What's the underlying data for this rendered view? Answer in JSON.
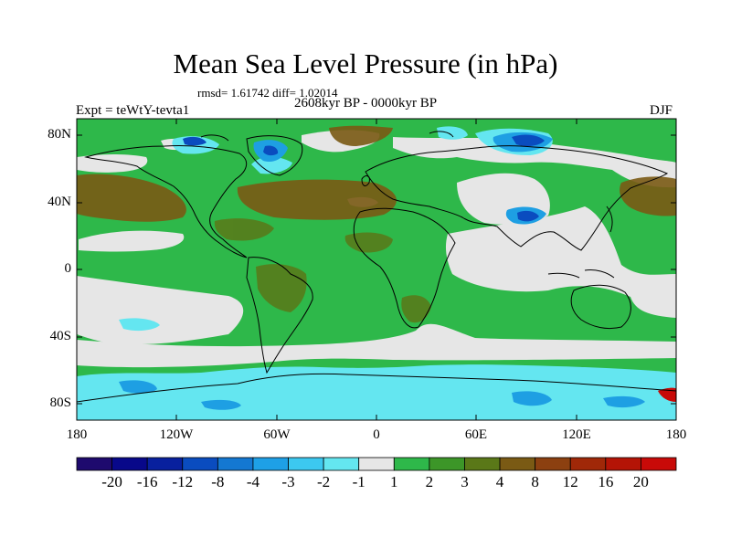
{
  "title": "Mean Sea Level Pressure (in hPa)",
  "stats_line": "rmsd= 1.61742 diff= 1.02014",
  "period": "2608kyr BP - 0000kyr BP",
  "experiment": "Expt = teWtY-tevta1",
  "season": "DJF",
  "axes": {
    "lat_labels": [
      "80N",
      "40N",
      "0",
      "40S",
      "80S"
    ],
    "lon_labels": [
      "180",
      "120W",
      "60W",
      "0",
      "60E",
      "120E",
      "180"
    ]
  },
  "colorbar": {
    "labels": [
      "-20",
      "-16",
      "-12",
      "-8",
      "-4",
      "-3",
      "-2",
      "-1",
      "1",
      "2",
      "3",
      "4",
      "8",
      "12",
      "16",
      "20"
    ],
    "colors": [
      "#1e0a6e",
      "#08088a",
      "#08209e",
      "#0a4cbf",
      "#1478d2",
      "#1ea0e6",
      "#3cc8f0",
      "#64e6f0",
      "#e6e6e6",
      "#2eb84a",
      "#3c9628",
      "#5a7818",
      "#7a5a14",
      "#8c4010",
      "#a02808",
      "#b41406",
      "#c80a08"
    ]
  },
  "palette": {
    "neutral": "#e6e6e6",
    "positive_small": "#2eb84a",
    "positive_mid": "#5a7818",
    "positive_high": "#7a5a14",
    "negative_small": "#64e6f0",
    "negative_mid": "#1e9fe3",
    "negative_strong": "#0a4cbf"
  }
}
